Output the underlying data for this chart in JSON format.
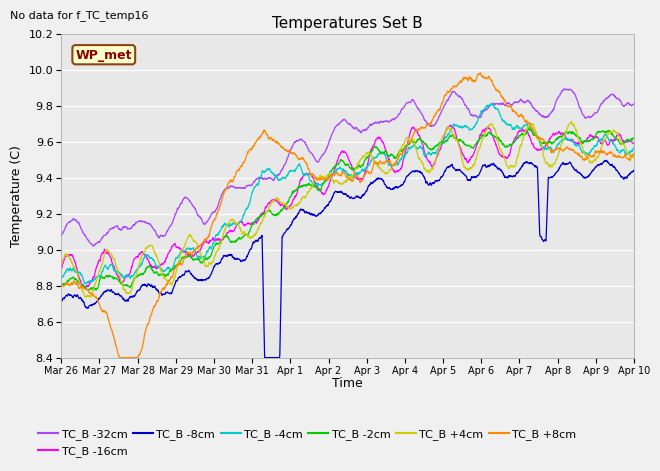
{
  "title": "Temperatures Set B",
  "top_left_text": "No data for f_TC_temp16",
  "ylabel": "Temperature (C)",
  "xlabel": "Time",
  "ylim": [
    8.4,
    10.2
  ],
  "yticks": [
    8.4,
    8.6,
    8.8,
    9.0,
    9.2,
    9.4,
    9.6,
    9.8,
    10.0,
    10.2
  ],
  "fig_bg_color": "#f0f0f0",
  "plot_bg_color": "#e8e8e8",
  "grid_color": "#ffffff",
  "wp_met_label": "WP_met",
  "series_colors": {
    "TC_B -32cm": "#aa44ff",
    "TC_B -16cm": "#ff00ff",
    "TC_B -8cm": "#0000cc",
    "TC_B -4cm": "#00cccc",
    "TC_B -2cm": "#00cc00",
    "TC_B +4cm": "#cccc00",
    "TC_B +8cm": "#ff8800"
  },
  "x_tick_labels": [
    "Mar 26",
    "Mar 27",
    "Mar 28",
    "Mar 29",
    "Mar 30",
    "Mar 31",
    "Apr 1",
    "Apr 2",
    "Apr 3",
    "Apr 4",
    "Apr 5",
    "Apr 6",
    "Apr 7",
    "Apr 8",
    "Apr 9",
    "Apr 10"
  ],
  "n_points": 2000,
  "legend_order": [
    "TC_B -32cm",
    "TC_B -16cm",
    "TC_B -8cm",
    "TC_B -4cm",
    "TC_B -2cm",
    "TC_B +4cm",
    "TC_B +8cm"
  ]
}
